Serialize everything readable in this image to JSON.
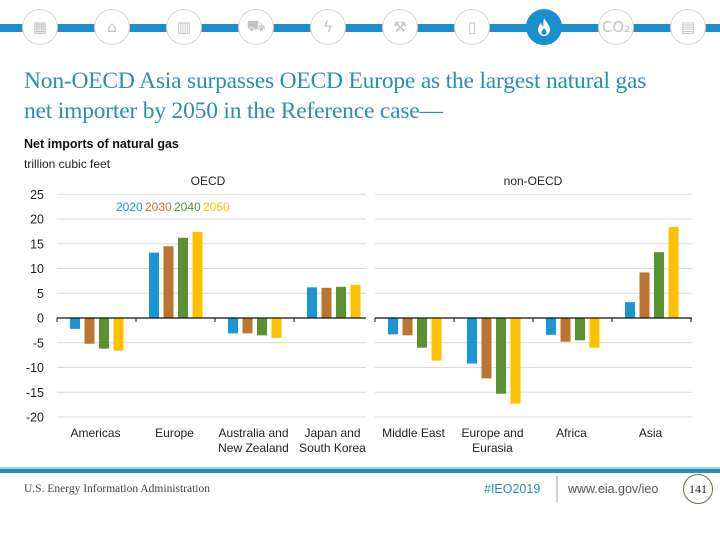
{
  "header": {
    "icons": [
      {
        "name": "buildings-overview-icon",
        "glyph": "▦",
        "active": false
      },
      {
        "name": "industrial-icon",
        "glyph": "⌂",
        "active": false
      },
      {
        "name": "commercial-building-icon",
        "glyph": "▥",
        "active": false
      },
      {
        "name": "car-icon",
        "glyph": "⛟",
        "active": false
      },
      {
        "name": "electricity-icon",
        "glyph": "ϟ",
        "active": false
      },
      {
        "name": "mining-icon",
        "glyph": "⚒",
        "active": false
      },
      {
        "name": "oil-barrel-icon",
        "glyph": "▯",
        "active": false
      },
      {
        "name": "natural-gas-flame-icon",
        "glyph": "flame",
        "active": true
      },
      {
        "name": "co2-icon",
        "glyph": "CO₂",
        "active": false
      },
      {
        "name": "document-icon",
        "glyph": "▤",
        "active": false
      }
    ],
    "colors": {
      "rail": "#1a8fd0",
      "active": "#1a8fd0"
    }
  },
  "title": {
    "line1": "Non-OECD Asia surpasses OECD Europe as the largest natural gas",
    "line2": "net importer by 2050 in the Reference case—"
  },
  "chart_header": {
    "subtitle": "Net imports of natural gas",
    "units": "trillion cubic feet"
  },
  "chart_data": {
    "type": "bar",
    "title": "Net imports of natural gas",
    "ylabel": "trillion cubic feet",
    "xlabel": "",
    "ylim": [
      -20,
      25
    ],
    "yticks": [
      25,
      20,
      15,
      10,
      5,
      0,
      -5,
      -10,
      -15,
      -20
    ],
    "grid": true,
    "legend_position": "top-left",
    "panels": [
      {
        "label": "OECD",
        "categories": [
          "Americas",
          "Europe",
          "Australia and New Zealand",
          "Japan and South Korea"
        ]
      },
      {
        "label": "non-OECD",
        "categories": [
          "Middle East",
          "Europe and Eurasia",
          "Africa",
          "Asia"
        ]
      }
    ],
    "categories": [
      [
        "Americas"
      ],
      [
        "Europe"
      ],
      [
        "Australia and",
        "New Zealand"
      ],
      [
        "Japan and",
        "South Korea"
      ],
      [
        "Middle East"
      ],
      [
        "Europe and",
        "Eurasia"
      ],
      [
        "Africa"
      ],
      [
        "Asia"
      ]
    ],
    "series": [
      {
        "name": "2020",
        "color": "#1a96d4",
        "values": [
          -2.2,
          13.2,
          -3.1,
          6.2,
          -3.3,
          -9.2,
          -3.4,
          3.2
        ]
      },
      {
        "name": "2030",
        "color": "#bc7430",
        "values": [
          -5.2,
          14.5,
          -3.1,
          6.1,
          -3.5,
          -12.2,
          -4.8,
          9.2
        ]
      },
      {
        "name": "2040",
        "color": "#5a9232",
        "values": [
          -6.2,
          16.2,
          -3.5,
          6.3,
          -6.0,
          -15.3,
          -4.5,
          13.3
        ]
      },
      {
        "name": "2050",
        "color": "#ffc000",
        "values": [
          -6.6,
          17.4,
          -4.0,
          6.7,
          -8.6,
          -17.3,
          -6.0,
          18.4
        ]
      }
    ]
  },
  "footer": {
    "organization": "U.S. Energy Information Administration",
    "hashtag": "#IEO2019",
    "url": "www.eia.gov/ieo",
    "page_number": "141"
  }
}
